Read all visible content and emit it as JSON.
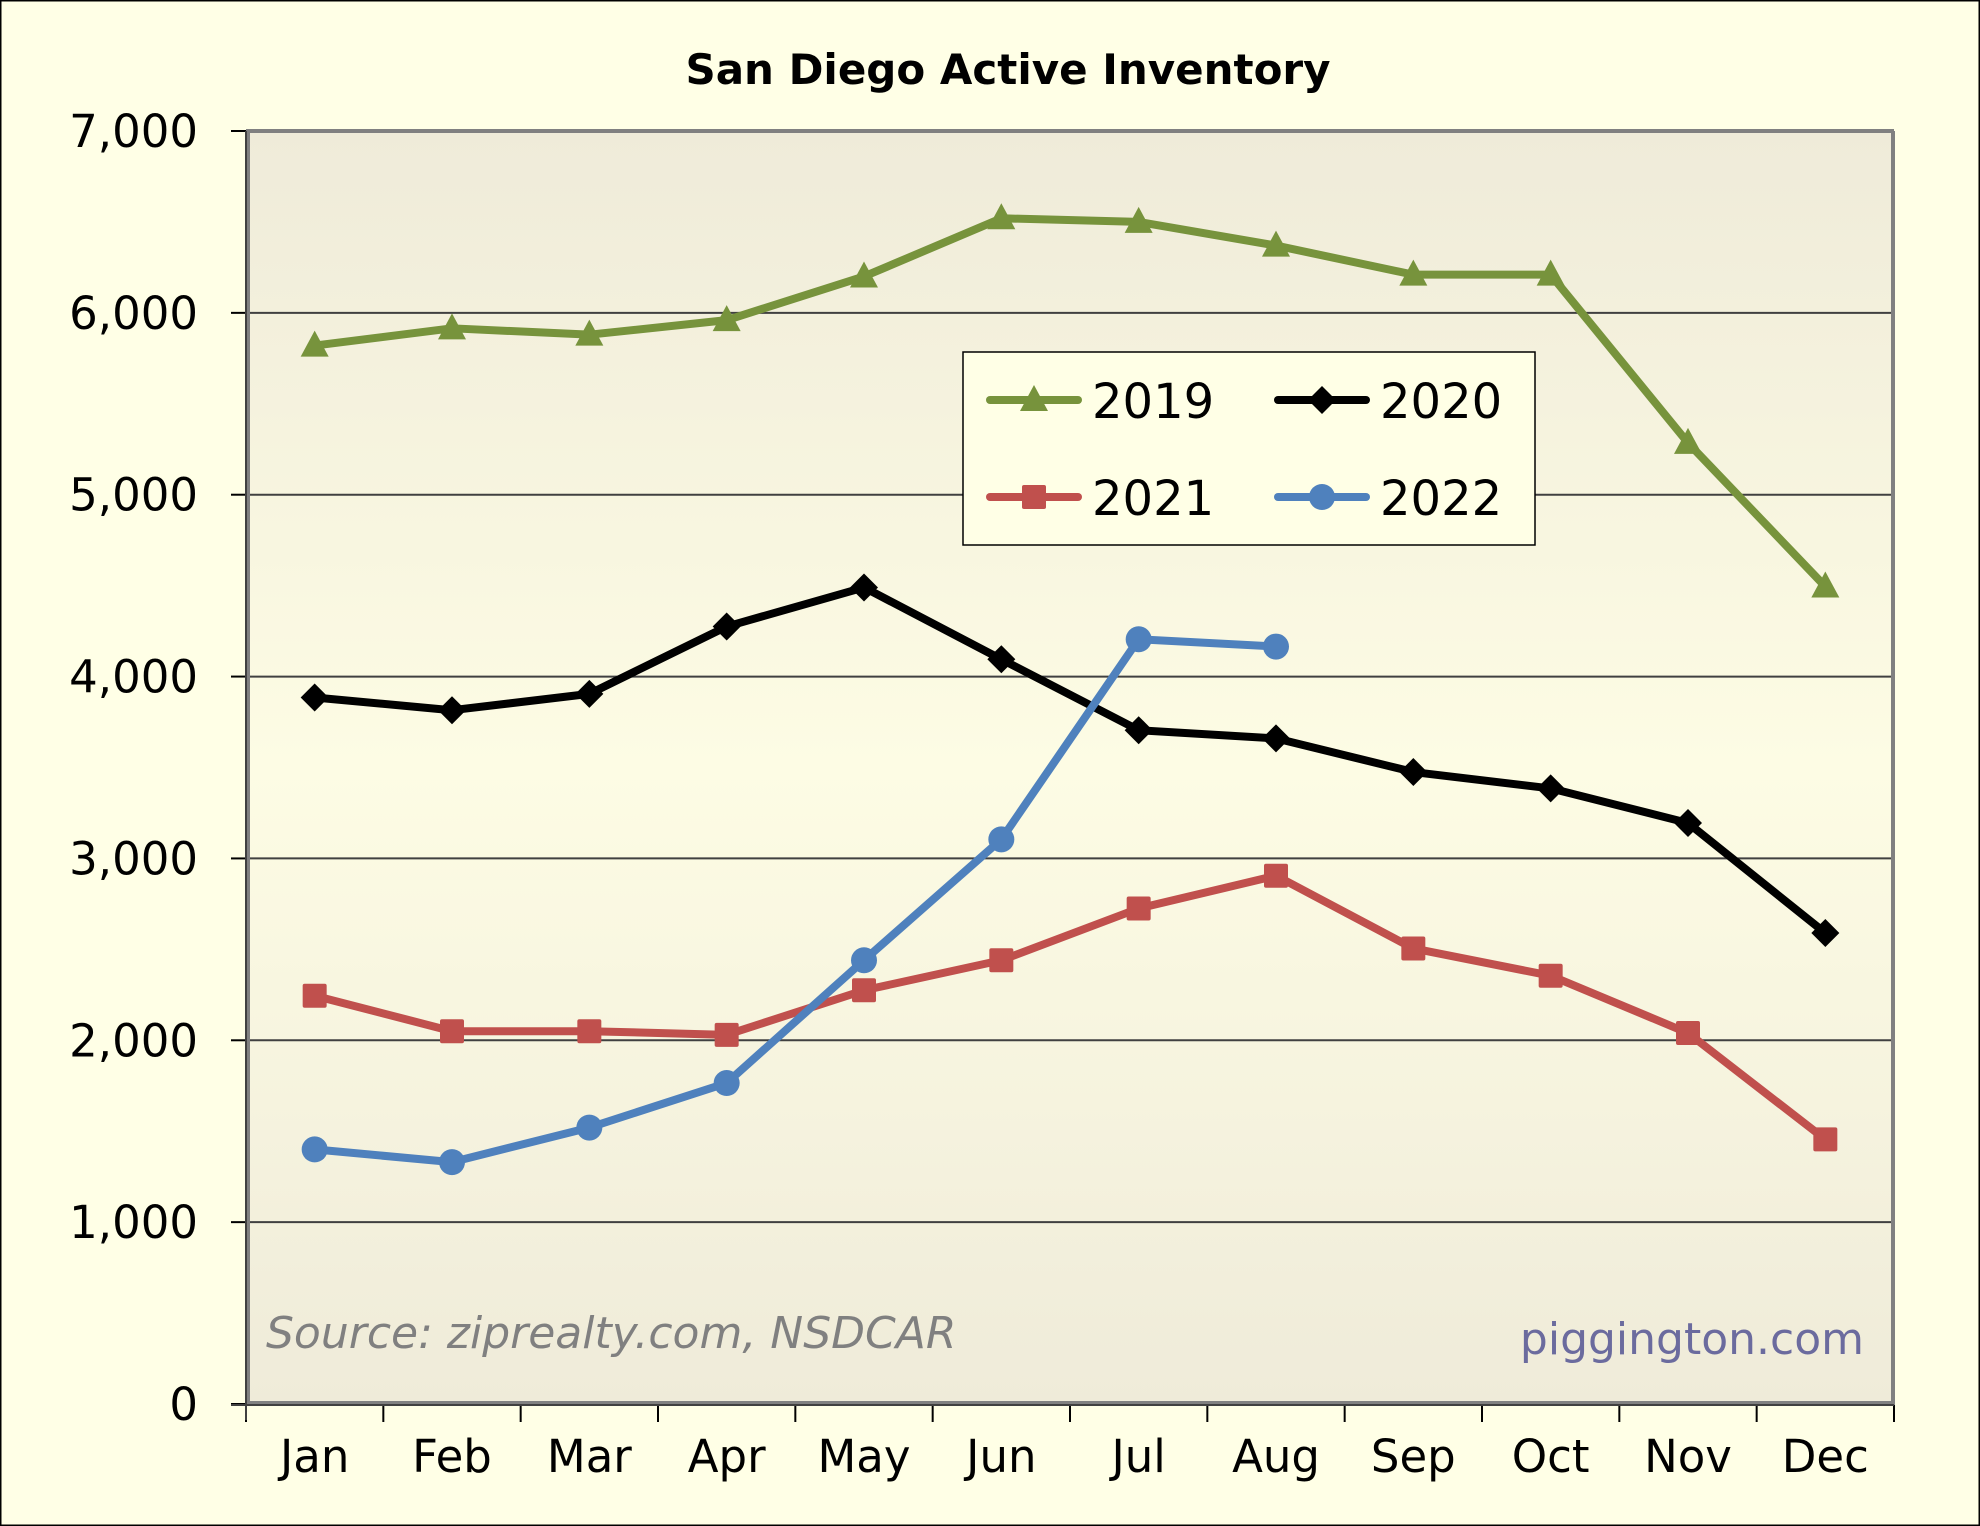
{
  "chart_data": {
    "type": "line",
    "title": "San Diego Active Inventory",
    "xlabel": "",
    "ylabel": "",
    "categories": [
      "Jan",
      "Feb",
      "Mar",
      "Apr",
      "May",
      "Jun",
      "Jul",
      "Aug",
      "Sep",
      "Oct",
      "Nov",
      "Dec"
    ],
    "ylim": [
      0,
      7000
    ],
    "yticks": [
      0,
      1000,
      2000,
      3000,
      4000,
      5000,
      6000,
      7000
    ],
    "ytick_labels": [
      "0",
      "1,000",
      "2,000",
      "3,000",
      "4,000",
      "5,000",
      "6,000",
      "7,000"
    ],
    "grid": true,
    "legend_position": "top-center-right",
    "series": [
      {
        "name": "2019",
        "color": "#77933C",
        "marker": "triangle",
        "values": [
          5820,
          5915,
          5880,
          5960,
          6200,
          6520,
          6500,
          6370,
          6210,
          6210,
          5285,
          4495
        ]
      },
      {
        "name": "2020",
        "color": "#000000",
        "marker": "diamond",
        "values": [
          3885,
          3815,
          3905,
          4275,
          4490,
          4095,
          3705,
          3660,
          3475,
          3385,
          3195,
          2590
        ]
      },
      {
        "name": "2021",
        "color": "#C0504D",
        "marker": "square",
        "values": [
          2245,
          2050,
          2050,
          2030,
          2275,
          2440,
          2725,
          2905,
          2505,
          2355,
          2040,
          1455
        ]
      },
      {
        "name": "2022",
        "color": "#4F81BD",
        "marker": "circle",
        "values": [
          1400,
          1330,
          1520,
          1765,
          2440,
          3105,
          4205,
          4165,
          null,
          null,
          null,
          null
        ]
      }
    ],
    "annotations": [
      {
        "text": "Source: ziprealty.com, NSDCAR",
        "position": "bottom-left"
      },
      {
        "text": "piggington.com",
        "position": "bottom-right"
      }
    ]
  },
  "colors": {
    "page_background": "#FFFFE6",
    "plot_background_top": "#EFEBD9",
    "plot_background_bottom": "#FAF8E2",
    "gridline": "#404040",
    "plot_border": "#808080",
    "source_text": "#808080",
    "watermark_text": "#6B6B9E"
  }
}
